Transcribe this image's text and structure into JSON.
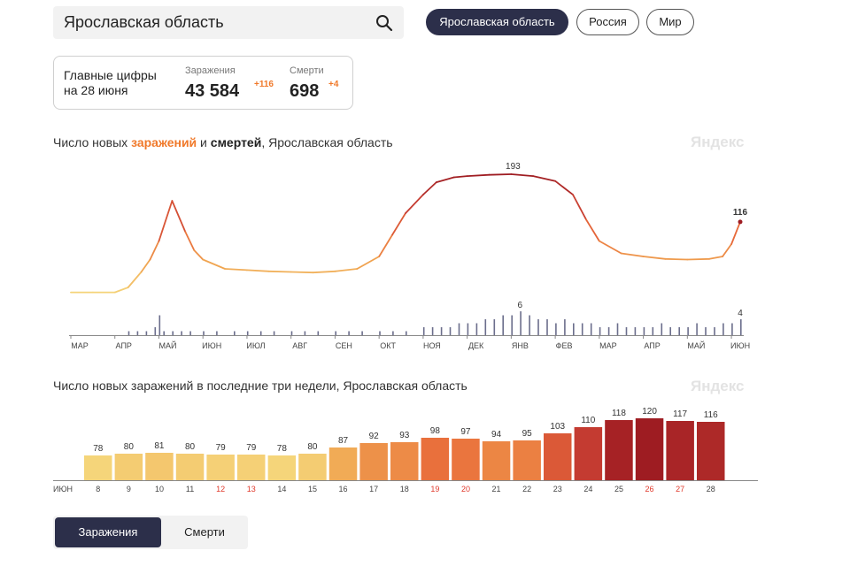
{
  "search": {
    "value": "Ярославская область"
  },
  "regions": [
    {
      "label": "Ярославская область",
      "active": true
    },
    {
      "label": "Россия",
      "active": false
    },
    {
      "label": "Мир",
      "active": false
    }
  ],
  "summary": {
    "title_line1": "Главные цифры",
    "title_line2": "на 28 июня",
    "infections_label": "Заражения",
    "infections_value": "43 584",
    "infections_delta": "+116",
    "deaths_label": "Смерти",
    "deaths_value": "698",
    "deaths_delta": "+4"
  },
  "chart1_title": {
    "part1": "Число новых ",
    "part2": "заражений",
    "part3": " и ",
    "part4": "смертей",
    "part5": ", Ярославская область"
  },
  "chart2_title": "Число новых заражений в последние три недели, Ярославская область",
  "watermark": "Яндекс",
  "toggle": {
    "infections": "Заражения",
    "deaths": "Смерти"
  },
  "colors": {
    "accent": "#f0792a",
    "dark_button": "#2c2f4a",
    "deaths_bars": "#6b6e8c"
  },
  "chart_data": [
    {
      "type": "line",
      "title": "Число новых заражений и смертей, Ярославская область",
      "months": [
        "МАР",
        "АПР",
        "МАЙ",
        "ИЮН",
        "ИЮЛ",
        "АВГ",
        "СЕН",
        "ОКТ",
        "НОЯ",
        "ДЕК",
        "ЯНВ",
        "ФЕВ",
        "МАР",
        "АПР",
        "МАЙ",
        "ИЮН"
      ],
      "series": [
        {
          "name": "заражений",
          "peak_label": "193",
          "last_label": "116",
          "x": [
            0,
            0.5,
            1,
            1.3,
            1.6,
            1.8,
            2.0,
            2.3,
            2.6,
            2.8,
            3.0,
            3.5,
            4.0,
            4.5,
            5.0,
            5.5,
            6.0,
            6.5,
            7.0,
            7.3,
            7.6,
            8.0,
            8.3,
            8.7,
            9.0,
            9.5,
            10.0,
            10.5,
            11.0,
            11.4,
            11.7,
            12.0,
            12.5,
            13.0,
            13.5,
            14.0,
            14.5,
            14.8,
            15.0,
            15.2
          ],
          "values": [
            2,
            2,
            2,
            10,
            35,
            55,
            85,
            150,
            100,
            70,
            55,
            40,
            38,
            36,
            35,
            34,
            36,
            40,
            60,
            95,
            130,
            160,
            180,
            188,
            190,
            192,
            193,
            190,
            182,
            160,
            120,
            85,
            65,
            60,
            56,
            55,
            56,
            60,
            80,
            116
          ]
        },
        {
          "name": "смертей",
          "peak_label": "6",
          "last_label": "4",
          "x": [
            1.3,
            1.5,
            1.7,
            1.9,
            2.0,
            2.1,
            2.3,
            2.5,
            2.7,
            3.0,
            3.3,
            3.7,
            4.0,
            4.3,
            4.6,
            5.0,
            5.3,
            5.6,
            6.0,
            6.3,
            6.6,
            7.0,
            7.3,
            7.6,
            8.0,
            8.2,
            8.4,
            8.6,
            8.8,
            9.0,
            9.2,
            9.4,
            9.6,
            9.8,
            10.0,
            10.2,
            10.4,
            10.6,
            10.8,
            11.0,
            11.2,
            11.4,
            11.6,
            11.8,
            12.0,
            12.2,
            12.4,
            12.6,
            12.8,
            13.0,
            13.2,
            13.4,
            13.6,
            13.8,
            14.0,
            14.2,
            14.4,
            14.6,
            14.8,
            15.0,
            15.2
          ],
          "values": [
            1,
            1,
            1,
            2,
            5,
            1,
            1,
            1,
            1,
            1,
            1,
            1,
            1,
            1,
            1,
            1,
            1,
            1,
            1,
            1,
            1,
            1,
            1,
            1,
            2,
            2,
            2,
            2,
            3,
            3,
            3,
            4,
            4,
            5,
            5,
            6,
            5,
            4,
            4,
            3,
            4,
            3,
            3,
            3,
            2,
            2,
            3,
            2,
            2,
            2,
            2,
            3,
            2,
            2,
            2,
            3,
            2,
            2,
            3,
            3,
            4
          ]
        }
      ]
    },
    {
      "type": "bar",
      "title": "Число новых заражений в последние три недели, Ярославская область",
      "month_label": "ИЮН",
      "categories": [
        "8",
        "9",
        "10",
        "11",
        "12",
        "13",
        "14",
        "15",
        "16",
        "17",
        "18",
        "19",
        "20",
        "21",
        "22",
        "23",
        "24",
        "25",
        "26",
        "27",
        "28"
      ],
      "values": [
        78,
        80,
        81,
        80,
        79,
        79,
        78,
        80,
        87,
        92,
        93,
        98,
        97,
        94,
        95,
        103,
        110,
        118,
        120,
        117,
        116
      ],
      "weekend_categories": [
        "12",
        "13",
        "19",
        "20",
        "26",
        "27"
      ],
      "ylim": [
        0,
        130
      ]
    }
  ]
}
